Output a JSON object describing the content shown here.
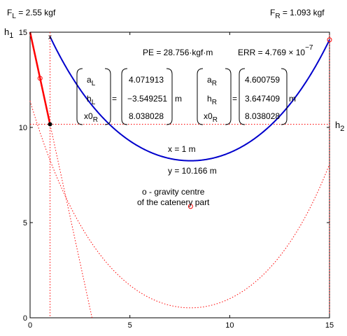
{
  "chart_data": {
    "type": "line",
    "xlim": [
      0,
      15
    ],
    "ylim": [
      0,
      15
    ],
    "xticks": [
      "0",
      "5",
      "10",
      "15"
    ],
    "yticks": [
      "0",
      "5",
      "10",
      "15"
    ],
    "grid": false,
    "labels": {
      "fl_name": "F",
      "fl_sub": "L",
      "fl_value": " = 2.55 kgf",
      "fr_name": "F",
      "fr_sub": "R",
      "fr_value": " = 1.093 kgf",
      "h1_name": "h",
      "h1_sub": "1",
      "h2_name": "h",
      "h2_sub": "2",
      "x_marker": "x",
      "pe": "PE = 28.756·kgf·m",
      "err_base": "ERR = 4.769 × 10",
      "err_exp": "−7",
      "x_val": "x = 1 m",
      "y_val": "y = 10.166 m",
      "gc_line1": "o - gravity centre",
      "gc_line2": "of the catenery part"
    },
    "left_matrix": {
      "names": [
        {
          "main": "a",
          "sub": "L"
        },
        {
          "main": "h",
          "sub": "L"
        },
        {
          "main": "x0",
          "sub": "R"
        }
      ],
      "values": [
        "4.071913",
        "−3.549251",
        "8.038028"
      ],
      "unit": "m"
    },
    "right_matrix": {
      "names": [
        {
          "main": "a",
          "sub": "R"
        },
        {
          "main": "h",
          "sub": "R"
        },
        {
          "main": "x0",
          "sub": "R"
        }
      ],
      "values": [
        "4.600759",
        "3.647409",
        "8.038028"
      ],
      "unit": "m"
    },
    "catenary_left": {
      "a": 4.071913,
      "x0": 8.038028,
      "h": -3.549251
    },
    "catenary_right": {
      "a": 4.600759,
      "x0": 8.038028,
      "h": 3.647409
    },
    "left_segment": {
      "x": [
        0,
        1
      ],
      "y": [
        15,
        10.166
      ]
    },
    "point": {
      "x": 1,
      "y": 10.166
    },
    "gravity_centres": [
      {
        "x": 0.5,
        "y": 12.58
      },
      {
        "x": 8.04,
        "y": 5.85
      }
    ],
    "colors": {
      "curve": "#0000cc",
      "rope": "#ff0000",
      "dotted": "#ff0000",
      "marker": "#ff0000",
      "point": "#000000"
    }
  }
}
